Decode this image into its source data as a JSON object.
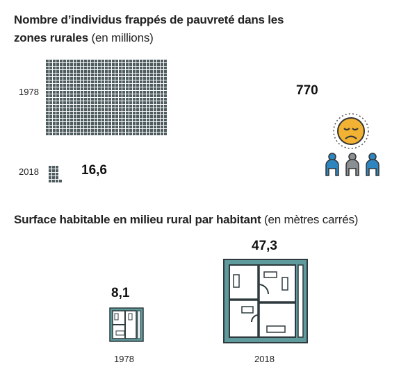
{
  "section1": {
    "title_bold": "Nombre d’individus frappés de pauvreté dans les zones rurales",
    "title_unit": "(en millions)",
    "icon": "sad-face-people-icon"
  },
  "section2": {
    "title_bold": "Surface habitable en milieu rural par habitant",
    "title_unit": "(en mètres carrés)",
    "icon": "floor-plan-icon"
  },
  "colors": {
    "grid_square": "#4f5d61",
    "floor_plan_outer": "#5f9a9c",
    "floor_plan_wall": "#2e3a3d",
    "face": "#f2b233",
    "person": "#2e86c1",
    "person_gray": "#8a8f93"
  },
  "chart_data": [
    {
      "type": "bar",
      "title": "Nombre d’individus frappés de pauvreté dans les zones rurales (en millions)",
      "categories": [
        "1978",
        "2018"
      ],
      "values": [
        770,
        16.6
      ],
      "value_labels": [
        "770",
        "16,6"
      ],
      "encoding": "unit squares"
    },
    {
      "type": "bar",
      "title": "Surface habitable en milieu rural par habitant (en mètres carrés)",
      "categories": [
        "1978",
        "2018"
      ],
      "values": [
        8.1,
        47.3
      ],
      "value_labels": [
        "8,1",
        "47,3"
      ],
      "encoding": "floor-plan icon area"
    }
  ]
}
